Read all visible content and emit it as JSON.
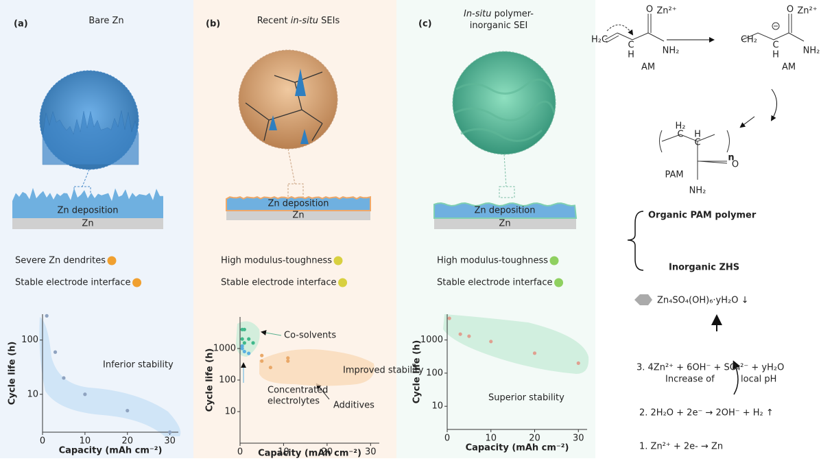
{
  "panels": [
    {
      "label": "(a)",
      "title": [
        [
          {
            "text": "Bare Zn"
          }
        ]
      ],
      "deposition": "Zn deposition",
      "substrate": "Zn",
      "statements": [
        "Severe Zn dendrites",
        "Stable electrode interface"
      ],
      "chart": {
        "type": "scatter",
        "xlabel": "Capacity (mAh cm⁻²)",
        "ylabel": "Cycle life (h)",
        "xlim": [
          0,
          32
        ],
        "xticks": [
          0,
          10,
          20,
          30
        ],
        "ylim": [
          2,
          300
        ],
        "yticks": [
          10,
          100
        ],
        "log_y": true,
        "series": [
          {
            "color": "#8fa3c0",
            "x": [
              1,
              3,
              5,
              10,
              20,
              30
            ],
            "values": [
              280,
              60,
              20,
              10,
              5,
              2
            ]
          }
        ],
        "annotations": [
          {
            "text": "Inferior stability",
            "color": "#7fb3de"
          }
        ]
      }
    },
    {
      "label": "(b)",
      "title": [
        [
          {
            "text": "Recent "
          },
          {
            "text": "in-situ",
            "italic": true
          },
          {
            "text": " SEIs"
          }
        ]
      ],
      "deposition": "Zn deposition",
      "substrate": "Zn",
      "statements": [
        "High modulus-toughness",
        "Stable electrode interface"
      ],
      "chart": {
        "type": "scatter",
        "xlabel": "Capacity (mAh cm⁻²)",
        "ylabel": "Cycle life (h)",
        "xlim": [
          0,
          32
        ],
        "xticks": [
          0,
          10,
          20,
          30
        ],
        "ylim": [
          1,
          10000
        ],
        "yticks": [
          10,
          100,
          1000
        ],
        "log_y": true,
        "series": [
          {
            "color": "#3fb88a",
            "x": [
              0.5,
              1,
              0.5,
              1,
              2,
              3
            ],
            "values": [
              4000,
              4000,
              2000,
              1500,
              2000,
              1500
            ]
          },
          {
            "color": "#5ab0e0",
            "x": [
              0.5,
              1,
              2,
              0.5
            ],
            "values": [
              1000,
              800,
              700,
              1200
            ]
          },
          {
            "color": "#e9a868",
            "x": [
              5,
              5,
              7,
              11,
              11
            ],
            "values": [
              600,
              400,
              250,
              500,
              400
            ]
          }
        ],
        "annotations": [
          {
            "text": "Co-solvents",
            "color": "#222"
          },
          {
            "text": "Improved stability",
            "color": "#f0b27a"
          },
          {
            "text": "Concentrated",
            "color": "#222"
          },
          {
            "text": "electrolytes",
            "color": "#222"
          },
          {
            "text": "Additives",
            "color": "#222"
          }
        ]
      }
    },
    {
      "label": "(c)",
      "title": [
        [
          {
            "text": "In-situ",
            "italic": true
          },
          {
            "text": " polymer-"
          }
        ],
        [
          {
            "text": "inorganic SEI"
          }
        ]
      ],
      "deposition": "Zn deposition",
      "substrate": "Zn",
      "statements": [
        "High modulus-toughness",
        "Stable electrode interface"
      ],
      "chart": {
        "type": "scatter",
        "xlabel": "Capacity (mAh cm⁻²)",
        "ylabel": "Cycle life (h)",
        "xlim": [
          0,
          32
        ],
        "xticks": [
          0,
          10,
          20,
          30
        ],
        "ylim": [
          2,
          6000
        ],
        "yticks": [
          10,
          100,
          1000
        ],
        "log_y": true,
        "series": [
          {
            "color": "#e0a090",
            "x": [
              0.5,
              3,
              5,
              10,
              20,
              30
            ],
            "values": [
              4500,
              1500,
              1300,
              900,
              400,
              200
            ]
          }
        ],
        "annotations": [
          {
            "text": "Superior stability",
            "color": "#6fcfae"
          }
        ]
      }
    }
  ],
  "mechanism": {
    "structure_labels": [
      "O",
      "Zn²⁺",
      "H₂C",
      "C",
      "H",
      "NH₂",
      "AM",
      "O",
      "Zn²⁺",
      "CH₂",
      "C",
      "H",
      "NH₂",
      "AM",
      "H₂",
      "C",
      "H",
      "C",
      "n",
      "PAM",
      "O",
      "NH₂"
    ],
    "components": [
      "Organic PAM polymer",
      "Inorganic ZHS"
    ],
    "product": "Zn₄SO₄(OH)₆·yH₂O ↓",
    "steps": [
      "3. 4Zn²⁺ + 6OH⁻ + SO₄²⁻ + yH₂O",
      "2. 2H₂O + 2e⁻ → 2OH⁻ + H₂ ↑",
      "1. Zn²⁺ + 2e- → Zn"
    ],
    "ph_note": [
      "Increase of",
      "local pH"
    ]
  }
}
